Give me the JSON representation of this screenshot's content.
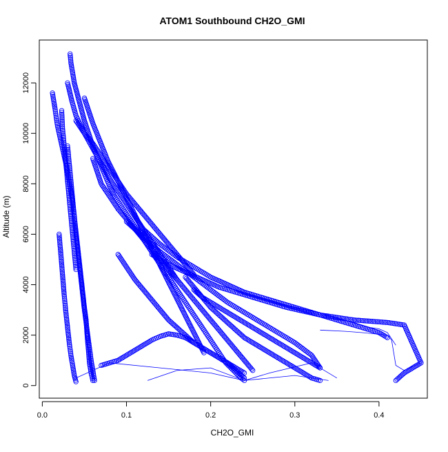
{
  "chart_data": {
    "type": "scatter",
    "title": "ATOM1 Southbound CH2O_GMI",
    "xlabel": "CH2O_GMI",
    "ylabel": "Altitude (m)",
    "xlim": [
      -0.0036,
      0.4574
    ],
    "ylim": [
      -500,
      13700
    ],
    "xticks": [
      0,
      0.1,
      0.2,
      0.3,
      0.4
    ],
    "xtick_labels": [
      "0.0",
      "0.1",
      "0.2",
      "0.3",
      "0.4"
    ],
    "yticks": [
      0,
      2000,
      4000,
      6000,
      8000,
      10000,
      12000
    ],
    "ytick_labels": [
      "0",
      "2000",
      "4000",
      "6000",
      "8000",
      "10000",
      "12000"
    ],
    "grid": false,
    "legend": "none",
    "marker": "open-circle",
    "colors": {
      "series": "#0000ff"
    },
    "series": [
      {
        "x": [
          0.012,
          0.015,
          0.018,
          0.022,
          0.026,
          0.03,
          0.033,
          0.036,
          0.038,
          0.04,
          0.042,
          0.044,
          0.046,
          0.048,
          0.05,
          0.052,
          0.053,
          0.054,
          0.055,
          0.056,
          0.058,
          0.06
        ],
        "y": [
          11600,
          11000,
          10300,
          9700,
          9100,
          8500,
          7900,
          7300,
          6700,
          6100,
          5500,
          4900,
          4300,
          3700,
          3100,
          2600,
          2100,
          1700,
          1300,
          900,
          500,
          200
        ]
      },
      {
        "x": [
          0.033,
          0.034,
          0.036,
          0.038,
          0.042,
          0.046,
          0.05,
          0.055,
          0.06,
          0.065,
          0.07,
          0.075,
          0.08,
          0.086,
          0.092,
          0.098,
          0.104,
          0.11,
          0.116,
          0.122,
          0.128,
          0.134,
          0.14,
          0.146,
          0.152,
          0.158,
          0.164,
          0.17,
          0.176,
          0.182,
          0.188,
          0.194,
          0.2,
          0.206,
          0.212,
          0.218,
          0.224,
          0.23,
          0.236,
          0.24
        ],
        "y": [
          13150,
          12800,
          12400,
          12000,
          11500,
          11000,
          10500,
          10000,
          9500,
          9100,
          8700,
          8300,
          7900,
          7500,
          7200,
          6900,
          6600,
          6300,
          6000,
          5700,
          5400,
          5100,
          4800,
          4500,
          4200,
          3900,
          3600,
          3300,
          3000,
          2700,
          2400,
          2100,
          1800,
          1500,
          1200,
          900,
          700,
          500,
          300,
          200
        ]
      },
      {
        "x": [
          0.05,
          0.055,
          0.06,
          0.066,
          0.072,
          0.078,
          0.084,
          0.09,
          0.096,
          0.102,
          0.108,
          0.114,
          0.12,
          0.126,
          0.132,
          0.138,
          0.144,
          0.15,
          0.156,
          0.162,
          0.168,
          0.174,
          0.18,
          0.186,
          0.192
        ],
        "y": [
          11400,
          10900,
          10400,
          9900,
          9400,
          8900,
          8500,
          8100,
          7700,
          7300,
          6900,
          6500,
          6100,
          5700,
          5300,
          4900,
          4500,
          4100,
          3700,
          3300,
          2900,
          2500,
          2100,
          1700,
          1300
        ]
      },
      {
        "x": [
          0.13,
          0.15,
          0.17,
          0.19,
          0.21,
          0.23,
          0.25,
          0.27,
          0.29,
          0.31,
          0.33,
          0.35,
          0.37,
          0.39,
          0.41,
          0.43,
          0.45,
          0.44,
          0.43,
          0.42
        ],
        "y": [
          5200,
          4800,
          4500,
          4200,
          3900,
          3700,
          3500,
          3300,
          3100,
          2950,
          2800,
          2700,
          2600,
          2550,
          2500,
          2400,
          900,
          700,
          500,
          200
        ]
      },
      {
        "x": [
          0.03,
          0.032,
          0.034,
          0.036,
          0.038,
          0.04,
          0.042,
          0.044,
          0.046,
          0.048,
          0.05,
          0.052,
          0.054,
          0.056,
          0.058,
          0.06,
          0.062
        ],
        "y": [
          9500,
          8800,
          8100,
          7400,
          6700,
          6000,
          5400,
          4800,
          4200,
          3600,
          3000,
          2500,
          2000,
          1500,
          1000,
          600,
          200
        ]
      },
      {
        "x": [
          0.02,
          0.022,
          0.024,
          0.026,
          0.028,
          0.03,
          0.032,
          0.034,
          0.036,
          0.038,
          0.04
        ],
        "y": [
          6000,
          5200,
          4400,
          3600,
          2900,
          2300,
          1700,
          1200,
          800,
          400,
          150
        ]
      },
      {
        "x": [
          0.04,
          0.05,
          0.06,
          0.07,
          0.08,
          0.09,
          0.1,
          0.11,
          0.12,
          0.13,
          0.14,
          0.15,
          0.16,
          0.17,
          0.18
        ],
        "y": [
          10500,
          10000,
          9600,
          9100,
          8600,
          8100,
          7600,
          7200,
          6800,
          6400,
          6000,
          5600,
          5200,
          4800,
          4400
        ]
      },
      {
        "x": [
          0.17,
          0.18,
          0.19,
          0.2,
          0.21,
          0.22,
          0.23,
          0.24,
          0.25,
          0.26,
          0.27,
          0.28,
          0.29,
          0.3,
          0.31,
          0.32,
          0.33
        ],
        "y": [
          4300,
          3900,
          3500,
          3100,
          2800,
          2500,
          2200,
          1900,
          1700,
          1500,
          1300,
          1100,
          900,
          700,
          500,
          300,
          200
        ]
      },
      {
        "x": [
          0.07,
          0.08,
          0.09,
          0.1,
          0.11,
          0.12,
          0.13,
          0.14,
          0.15,
          0.16,
          0.17,
          0.18,
          0.19,
          0.2,
          0.21,
          0.22,
          0.23,
          0.24
        ],
        "y": [
          800,
          900,
          1000,
          1200,
          1400,
          1600,
          1800,
          1950,
          2050,
          2000,
          1900,
          1700,
          1500,
          1300,
          1100,
          900,
          600,
          300
        ]
      },
      {
        "x": [
          0.06,
          0.065,
          0.07,
          0.08,
          0.09,
          0.1,
          0.11,
          0.12,
          0.13,
          0.14,
          0.15,
          0.16,
          0.17,
          0.18,
          0.19,
          0.2,
          0.21,
          0.22,
          0.23,
          0.24,
          0.25
        ],
        "y": [
          9000,
          8500,
          8000,
          7500,
          7000,
          6600,
          6200,
          5800,
          5400,
          5000,
          4600,
          4200,
          3800,
          3400,
          3000,
          2600,
          2200,
          1800,
          1400,
          1000,
          600
        ]
      },
      {
        "x": [
          0.1,
          0.12,
          0.14,
          0.16,
          0.18,
          0.2,
          0.22,
          0.24,
          0.26,
          0.28,
          0.3,
          0.32,
          0.33
        ],
        "y": [
          6500,
          5900,
          5300,
          4800,
          4300,
          3800,
          3300,
          2900,
          2500,
          2100,
          1700,
          1200,
          700
        ]
      },
      {
        "x": [
          0.12,
          0.14,
          0.16,
          0.18,
          0.2,
          0.22,
          0.24,
          0.26,
          0.28,
          0.3,
          0.32,
          0.34,
          0.36,
          0.38,
          0.4,
          0.41
        ],
        "y": [
          6200,
          5600,
          5100,
          4700,
          4300,
          4000,
          3700,
          3500,
          3300,
          3100,
          2900,
          2700,
          2500,
          2300,
          2100,
          1900
        ]
      },
      {
        "x": [
          0.03,
          0.035,
          0.04,
          0.05,
          0.06,
          0.07,
          0.08,
          0.09,
          0.1,
          0.11,
          0.12,
          0.13,
          0.14,
          0.15,
          0.16
        ],
        "y": [
          12000,
          11300,
          10700,
          10000,
          9400,
          8800,
          8200,
          7700,
          7200,
          6700,
          6200,
          5700,
          5200,
          4700,
          4200
        ]
      },
      {
        "x": [
          0.09,
          0.1,
          0.11,
          0.12,
          0.13,
          0.14,
          0.15,
          0.16,
          0.17,
          0.18,
          0.19,
          0.2,
          0.21,
          0.22,
          0.23,
          0.24
        ],
        "y": [
          5200,
          4700,
          4200,
          3800,
          3400,
          3000,
          2600,
          2300,
          2000,
          1700,
          1500,
          1300,
          1100,
          900,
          700,
          500
        ]
      },
      {
        "x": [
          0.18,
          0.19,
          0.2,
          0.21,
          0.22,
          0.23,
          0.24,
          0.25,
          0.26,
          0.27,
          0.28,
          0.29,
          0.3,
          0.31,
          0.32,
          0.33
        ],
        "y": [
          3800,
          3500,
          3300,
          3100,
          2900,
          2700,
          2500,
          2300,
          2100,
          1900,
          1700,
          1500,
          1300,
          1100,
          900,
          700
        ]
      },
      {
        "x": [
          0.023,
          0.024,
          0.026,
          0.028,
          0.03,
          0.032,
          0.034,
          0.036,
          0.038,
          0.04
        ],
        "y": [
          10900,
          10200,
          9500,
          8800,
          8100,
          7400,
          6700,
          6000,
          5300,
          4600
        ]
      }
    ],
    "connector_lines": [
      {
        "x": [
          0.125,
          0.16,
          0.2,
          0.24,
          0.3,
          0.34
        ],
        "y": [
          200,
          600,
          700,
          200,
          400,
          200
        ]
      },
      {
        "x": [
          0.04,
          0.08,
          0.14,
          0.2,
          0.24,
          0.27,
          0.32,
          0.35
        ],
        "y": [
          300,
          900,
          700,
          500,
          200,
          500,
          900,
          300
        ]
      },
      {
        "x": [
          0.33,
          0.36,
          0.38,
          0.41,
          0.415,
          0.42,
          0.43,
          0.45
        ],
        "y": [
          2200,
          2150,
          2100,
          2000,
          1800,
          800,
          600,
          900
        ]
      },
      {
        "x": [
          0.37,
          0.39,
          0.4,
          0.41,
          0.42
        ],
        "y": [
          2500,
          2300,
          2250,
          2100,
          1600
        ]
      }
    ]
  }
}
